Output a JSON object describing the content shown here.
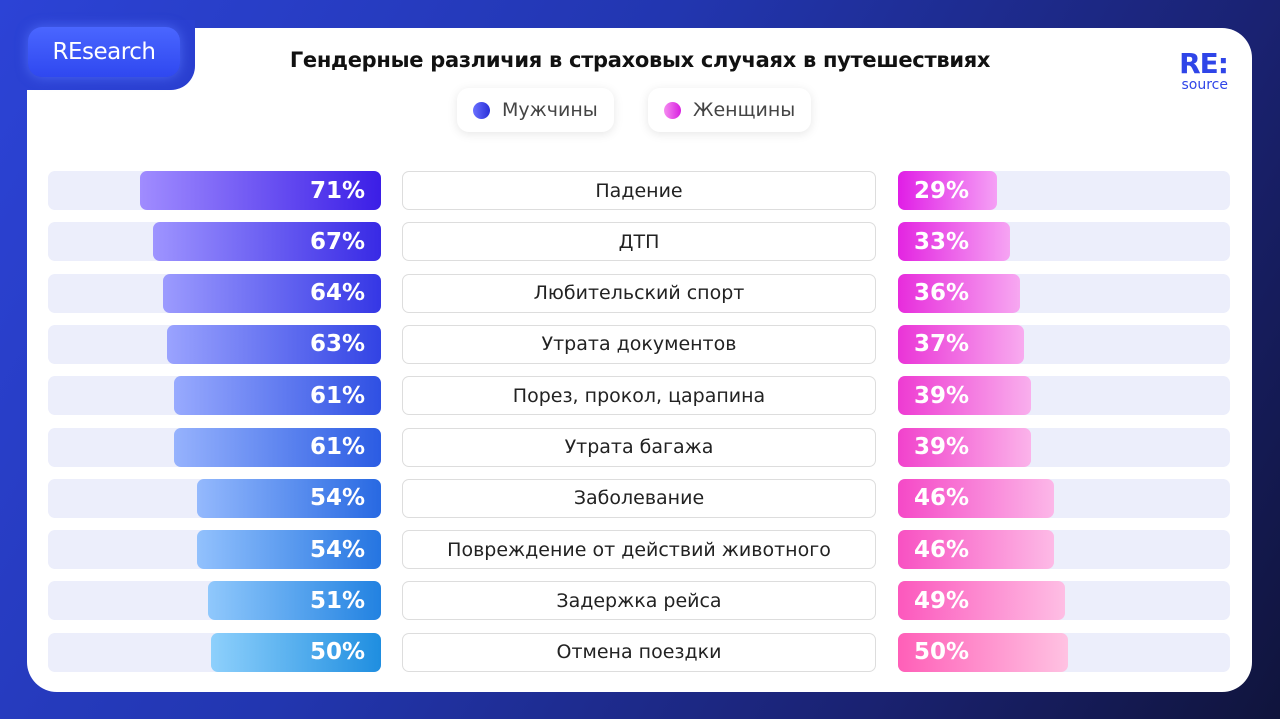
{
  "badge": "REsearch",
  "logo": {
    "big": "RE:",
    "small": "source"
  },
  "chart_data": {
    "type": "bar",
    "title": "Гендерные различия в страховых случаях в путешествиях",
    "legend": [
      "Мужчины",
      "Женщины"
    ],
    "legend_placement": "top-center",
    "categories": [
      "Падение",
      "ДТП",
      "Любительский спорт",
      "Утрата документов",
      "Порез, прокол, царапина",
      "Утрата багажа",
      "Заболевание",
      "Повреждение от действий животного",
      "Задержка рейса",
      "Отмена поездки"
    ],
    "series": [
      {
        "name": "Мужчины",
        "values": [
          71,
          67,
          64,
          63,
          61,
          61,
          54,
          54,
          51,
          50
        ]
      },
      {
        "name": "Женщины",
        "values": [
          29,
          33,
          36,
          37,
          39,
          39,
          46,
          46,
          49,
          50
        ]
      }
    ],
    "labels_men": [
      "71%",
      "67%",
      "64%",
      "63%",
      "61%",
      "61%",
      "54%",
      "54%",
      "51%",
      "50%"
    ],
    "labels_women": [
      "29%",
      "33%",
      "36%",
      "37%",
      "39%",
      "39%",
      "46%",
      "46%",
      "49%",
      "50%"
    ],
    "ylim": [
      0,
      100
    ]
  },
  "colors": {
    "men_top": [
      "#a08cff",
      "#3b1ee6"
    ],
    "men_bottom": [
      "#8ed0fc",
      "#1f8ee0"
    ],
    "women_top": [
      "#e01ee6",
      "#f5a0f5"
    ],
    "women_bottom": [
      "#ff5fb8",
      "#ffc2e2"
    ],
    "legend_men": [
      "#6a70ff",
      "#2a30d8"
    ],
    "legend_women": [
      "#f58cf0",
      "#d81fe0"
    ]
  }
}
